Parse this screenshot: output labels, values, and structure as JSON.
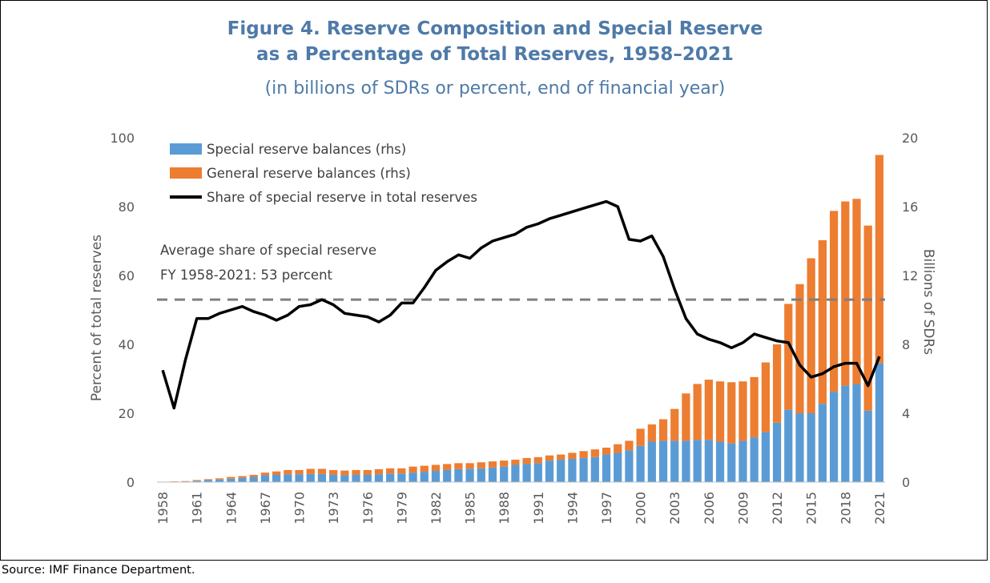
{
  "figure": {
    "title_line1": "Figure 4. Reserve Composition and Special Reserve",
    "title_line2": "as a Percentage of Total Reserves, 1958–2021",
    "subtitle": "(in billions of SDRs or percent, end of financial year)",
    "source": "Source: IMF Finance Department."
  },
  "chart_data": {
    "type": "bar",
    "stacked": true,
    "x": [
      1958,
      1959,
      1960,
      1961,
      1962,
      1963,
      1964,
      1965,
      1966,
      1967,
      1968,
      1969,
      1970,
      1971,
      1972,
      1973,
      1974,
      1975,
      1976,
      1977,
      1978,
      1979,
      1980,
      1981,
      1982,
      1983,
      1984,
      1985,
      1986,
      1987,
      1988,
      1989,
      1990,
      1991,
      1992,
      1993,
      1994,
      1995,
      1996,
      1997,
      1998,
      1999,
      2000,
      2001,
      2002,
      2003,
      2004,
      2005,
      2006,
      2007,
      2008,
      2009,
      2010,
      2011,
      2012,
      2013,
      2014,
      2015,
      2016,
      2017,
      2018,
      2019,
      2020,
      2021
    ],
    "x_tick_labels": [
      "1958",
      "1961",
      "1964",
      "1967",
      "1970",
      "1973",
      "1976",
      "1979",
      "1982",
      "1985",
      "1988",
      "1991",
      "1994",
      "1997",
      "2000",
      "2003",
      "2006",
      "2009",
      "2012",
      "2015",
      "2018",
      "2021"
    ],
    "series": [
      {
        "name": "Special reserve balances (rhs)",
        "axis": "right",
        "color": "#5b9bd5",
        "values": [
          0.01,
          0.02,
          0.04,
          0.08,
          0.12,
          0.15,
          0.2,
          0.25,
          0.3,
          0.4,
          0.42,
          0.45,
          0.45,
          0.47,
          0.47,
          0.42,
          0.4,
          0.42,
          0.42,
          0.45,
          0.5,
          0.5,
          0.55,
          0.6,
          0.65,
          0.7,
          0.75,
          0.78,
          0.8,
          0.85,
          0.9,
          1.0,
          1.05,
          1.1,
          1.25,
          1.3,
          1.35,
          1.4,
          1.45,
          1.6,
          1.7,
          1.85,
          2.1,
          2.35,
          2.4,
          2.4,
          2.4,
          2.45,
          2.45,
          2.35,
          2.25,
          2.4,
          2.6,
          2.9,
          3.45,
          4.2,
          4.0,
          4.0,
          4.55,
          5.25,
          5.6,
          5.7,
          4.15,
          6.9
        ]
      },
      {
        "name": "General reserve balances (rhs)",
        "axis": "right",
        "color": "#ed7d31",
        "values": [
          0.01,
          0.02,
          0.02,
          0.04,
          0.05,
          0.07,
          0.1,
          0.1,
          0.12,
          0.15,
          0.2,
          0.25,
          0.25,
          0.3,
          0.3,
          0.28,
          0.27,
          0.28,
          0.28,
          0.3,
          0.3,
          0.3,
          0.35,
          0.35,
          0.35,
          0.35,
          0.35,
          0.32,
          0.35,
          0.35,
          0.35,
          0.3,
          0.35,
          0.35,
          0.3,
          0.3,
          0.35,
          0.4,
          0.45,
          0.4,
          0.5,
          0.55,
          1.0,
          1.0,
          1.25,
          1.85,
          2.75,
          3.25,
          3.5,
          3.5,
          3.55,
          3.45,
          3.5,
          4.05,
          4.55,
          6.15,
          7.5,
          9.0,
          9.5,
          10.5,
          10.7,
          10.75,
          10.75,
          12.1
        ]
      },
      {
        "name": "Share of special reserve in total reserves",
        "axis": "left",
        "color": "#000000",
        "type": "line",
        "values": [
          32.5,
          21.5,
          35.5,
          47.5,
          47.5,
          49.0,
          50.0,
          51.0,
          49.5,
          48.5,
          47.0,
          48.5,
          51.0,
          51.5,
          53.0,
          51.5,
          49.0,
          48.5,
          48.0,
          46.5,
          48.5,
          52.0,
          52.0,
          56.5,
          61.5,
          64.0,
          66.0,
          65.0,
          68.0,
          70.0,
          71.0,
          72.0,
          74.0,
          75.0,
          76.5,
          77.5,
          78.5,
          79.5,
          80.5,
          81.5,
          80.0,
          70.5,
          70.0,
          71.5,
          65.5,
          56.0,
          47.5,
          43.0,
          41.5,
          40.5,
          39.0,
          40.5,
          43.0,
          42.0,
          41.0,
          40.5,
          34.0,
          30.5,
          31.5,
          33.5,
          34.5,
          34.5,
          28.0,
          36.5
        ]
      }
    ],
    "reference_line": {
      "value": 53,
      "axis": "left",
      "style": "dashed",
      "color": "#7f7f7f"
    },
    "annotation": [
      "Average share of special reserve",
      "FY 1958-2021: 53 percent"
    ],
    "y_left": {
      "label": "Percent of total reserves",
      "min": 0,
      "max": 100,
      "ticks": [
        0,
        20,
        40,
        60,
        80,
        100
      ]
    },
    "y_right": {
      "label": "Billions of SDRs",
      "min": 0,
      "max": 20,
      "ticks": [
        0,
        4,
        8,
        12,
        16,
        20
      ]
    },
    "legend": "top-left",
    "grid": false
  }
}
